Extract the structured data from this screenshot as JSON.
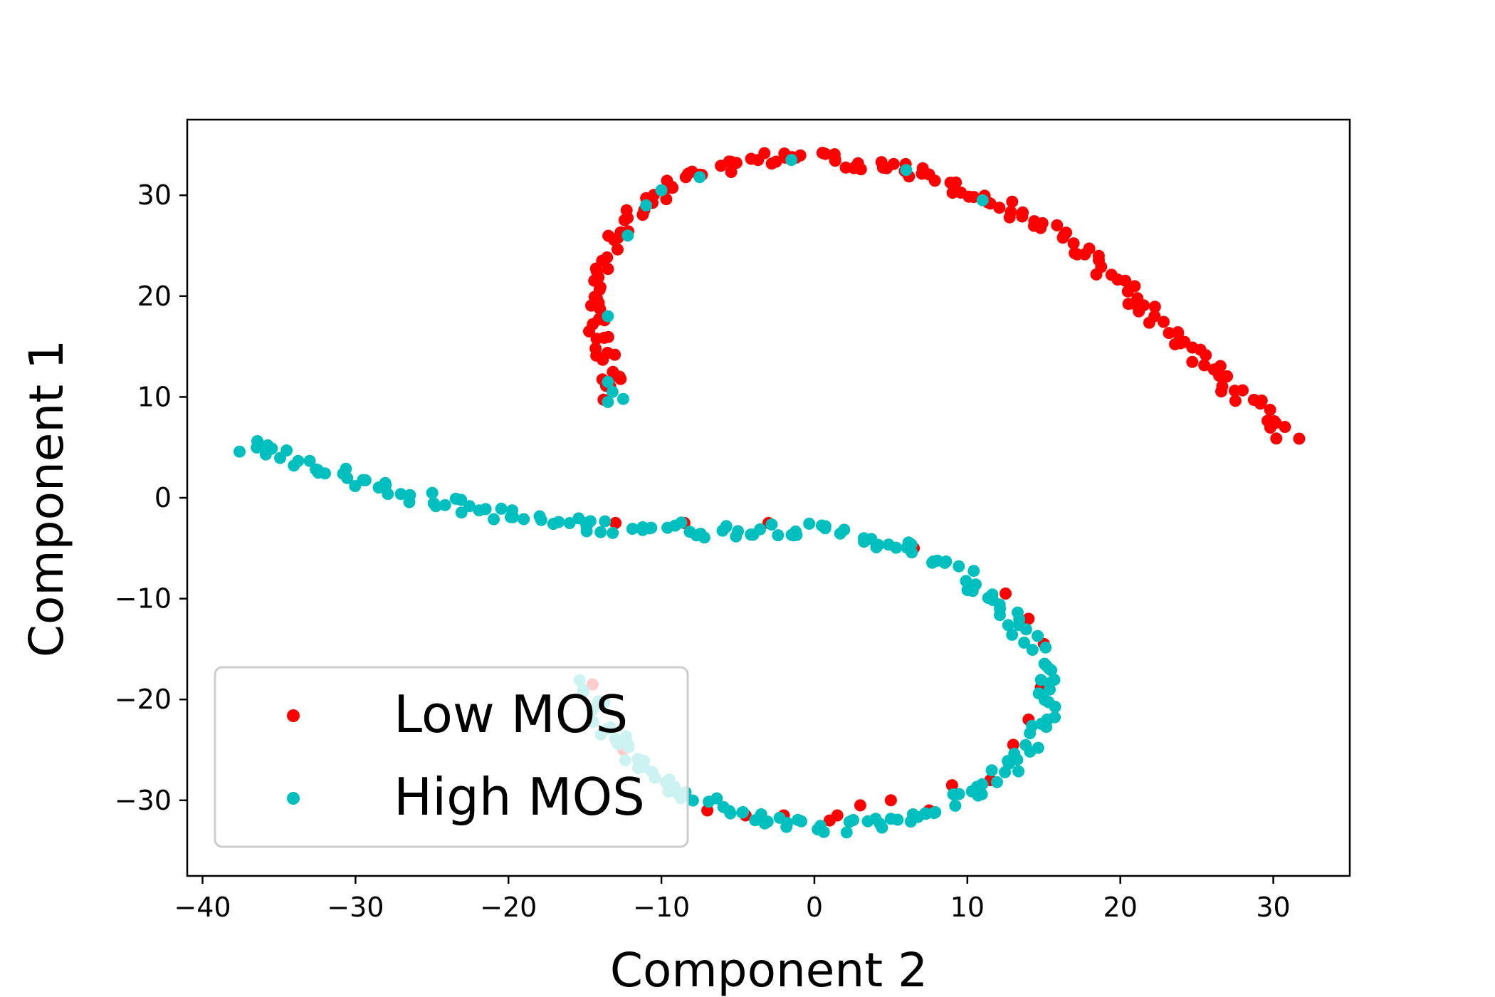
{
  "chart_data": {
    "type": "scatter",
    "title": "",
    "xlabel": "Component 2",
    "ylabel": "Component 1",
    "xlim": [
      -41,
      35
    ],
    "ylim": [
      -37.5,
      37.5
    ],
    "xticks": [
      -40,
      -30,
      -20,
      -10,
      0,
      10,
      20,
      30
    ],
    "yticks": [
      -30,
      -20,
      -10,
      0,
      10,
      20,
      30
    ],
    "legend_position": "lower-left",
    "series": [
      {
        "name": "Low MOS",
        "color": "#ff0000",
        "path": [
          [
            -14.0,
            10.0
          ],
          [
            -13.0,
            12.0
          ],
          [
            -14.0,
            15.0
          ],
          [
            -14.5,
            18.5
          ],
          [
            -14.2,
            22.0
          ],
          [
            -13.0,
            25.5
          ],
          [
            -11.5,
            28.5
          ],
          [
            -9.5,
            30.5
          ],
          [
            -7.5,
            32.0
          ],
          [
            -4.0,
            33.5
          ],
          [
            -1.0,
            34.0
          ],
          [
            2.0,
            33.5
          ],
          [
            6.0,
            32.5
          ],
          [
            9.0,
            31.0
          ],
          [
            12.0,
            29.0
          ],
          [
            16.0,
            26.0
          ],
          [
            19.0,
            22.5
          ],
          [
            22.0,
            18.5
          ],
          [
            25.0,
            14.0
          ],
          [
            28.0,
            10.0
          ],
          [
            31.0,
            6.0
          ]
        ],
        "count": 170,
        "extra_points": [
          [
            -3.0,
            -2.5
          ],
          [
            6.5,
            -5.0
          ],
          [
            12.5,
            -9.5
          ],
          [
            14.0,
            -12.0
          ],
          [
            15.0,
            -14.5
          ],
          [
            14.8,
            -18.8
          ],
          [
            14.0,
            -22.0
          ],
          [
            13.0,
            -24.5
          ],
          [
            11.5,
            -28.0
          ],
          [
            9.0,
            -28.5
          ],
          [
            7.5,
            -31.0
          ],
          [
            5.0,
            -30.0
          ],
          [
            3.0,
            -30.5
          ],
          [
            1.5,
            -31.5
          ],
          [
            1.0,
            -32.0
          ],
          [
            -2.0,
            -31.5
          ],
          [
            -4.5,
            -31.5
          ],
          [
            -7.0,
            -31.0
          ],
          [
            -9.5,
            -28.5
          ],
          [
            -11.5,
            -26.0
          ],
          [
            -12.5,
            -25.0
          ],
          [
            -13.0,
            -24.0
          ],
          [
            -14.5,
            -18.5
          ],
          [
            -13.0,
            -2.5
          ],
          [
            -8.5,
            -2.5
          ]
        ]
      },
      {
        "name": "High MOS",
        "color": "#00bfbf",
        "path": [
          [
            -37.5,
            5.2
          ],
          [
            -35.0,
            4.5
          ],
          [
            -32.0,
            3.0
          ],
          [
            -28.0,
            1.0
          ],
          [
            -24.0,
            -0.5
          ],
          [
            -20.0,
            -1.8
          ],
          [
            -15.5,
            -2.8
          ],
          [
            -11.0,
            -2.8
          ],
          [
            -7.0,
            -3.3
          ],
          [
            -2.0,
            -3.0
          ],
          [
            2.0,
            -3.5
          ],
          [
            6.0,
            -5.0
          ],
          [
            9.5,
            -7.5
          ],
          [
            12.0,
            -10.5
          ],
          [
            14.0,
            -14.0
          ],
          [
            15.0,
            -17.5
          ],
          [
            15.2,
            -21.5
          ],
          [
            14.0,
            -25.0
          ],
          [
            11.5,
            -28.0
          ],
          [
            8.5,
            -30.5
          ],
          [
            5.0,
            -32.0
          ],
          [
            2.5,
            -32.5
          ],
          [
            -0.5,
            -32.5
          ],
          [
            -4.0,
            -31.5
          ],
          [
            -7.5,
            -30.0
          ],
          [
            -10.0,
            -28.0
          ],
          [
            -12.0,
            -25.5
          ],
          [
            -13.5,
            -22.5
          ],
          [
            -14.8,
            -18.5
          ]
        ],
        "count": 230,
        "extra_points": [
          [
            -13.5,
            11.5
          ],
          [
            -13.2,
            10.5
          ],
          [
            -12.5,
            9.8
          ],
          [
            -13.5,
            9.5
          ],
          [
            -13.5,
            18.0
          ],
          [
            -12.2,
            26.0
          ],
          [
            -11.0,
            29.0
          ],
          [
            -10.0,
            30.5
          ],
          [
            -7.5,
            31.8
          ],
          [
            -1.5,
            33.5
          ],
          [
            6.0,
            32.5
          ],
          [
            11.0,
            29.5
          ]
        ]
      }
    ]
  }
}
